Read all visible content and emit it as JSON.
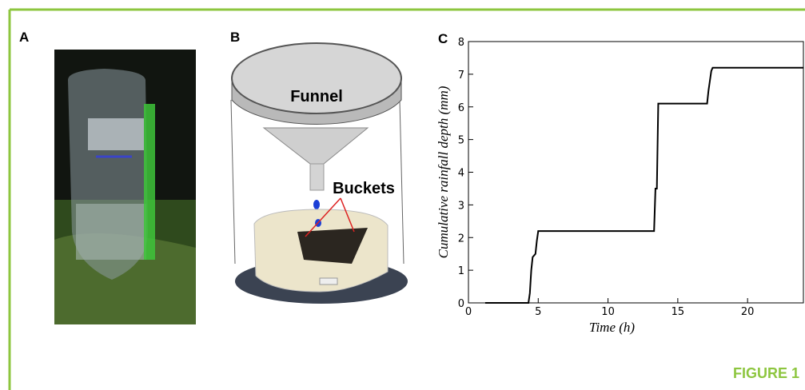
{
  "figure_label": "FIGURE 1",
  "panels": {
    "a": {
      "label": "A"
    },
    "b": {
      "label": "B",
      "funnel": "Funnel",
      "buckets": "Buckets"
    }
  },
  "chart_data": {
    "type": "line",
    "label": "C",
    "x_label": "Time (h)",
    "y_label": "Cumulative rainfall depth (mm)",
    "x": [
      1.2,
      4.3,
      4.4,
      4.5,
      4.6,
      4.8,
      4.9,
      5.0,
      13.3,
      13.4,
      13.5,
      13.6,
      17.1,
      17.2,
      17.4,
      17.5,
      24
    ],
    "series": [
      {
        "color": "#000000",
        "values": [
          0,
          0,
          0.3,
          1.0,
          1.4,
          1.5,
          1.9,
          2.2,
          2.2,
          3.5,
          3.5,
          6.1,
          6.1,
          6.5,
          7.1,
          7.2,
          7.2
        ]
      }
    ],
    "xlim": [
      0,
      24
    ],
    "ylim": [
      0,
      8
    ],
    "xticks": [
      0,
      5,
      10,
      15,
      20
    ],
    "yticks": [
      0,
      1,
      2,
      3,
      4,
      5,
      6,
      7,
      8
    ]
  }
}
